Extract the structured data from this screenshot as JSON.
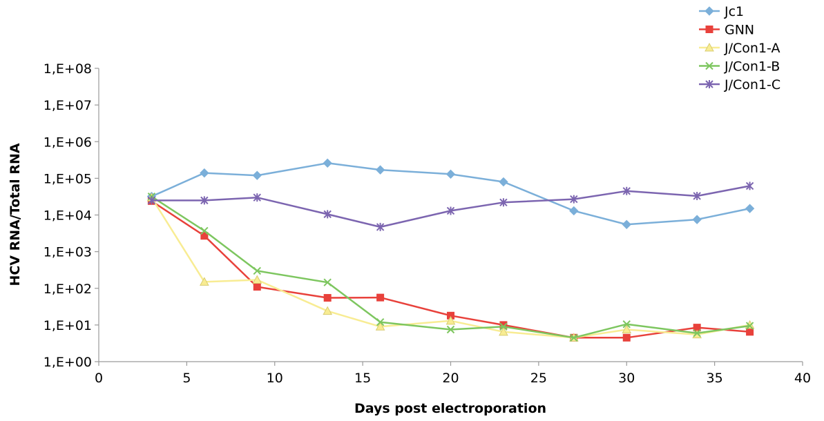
{
  "chart_data": {
    "type": "line",
    "title": "",
    "xlabel": "Days post electroporation",
    "ylabel": "HCV RNA/Total RNA",
    "xlim": [
      0,
      40
    ],
    "ylim": [
      1,
      100000000
    ],
    "y_scale": "log",
    "grid": false,
    "legend_position": "top-right",
    "x_ticks": [
      0,
      5,
      10,
      15,
      20,
      25,
      30,
      35,
      40
    ],
    "x_tick_labels": [
      "0",
      "5",
      "10",
      "15",
      "20",
      "25",
      "30",
      "35",
      "40"
    ],
    "y_ticks": [
      1,
      10,
      100,
      1000,
      10000,
      100000,
      1000000,
      10000000,
      100000000
    ],
    "y_tick_labels": [
      "1,E+00",
      "1,E+01",
      "1,E+02",
      "1,E+03",
      "1,E+04",
      "1,E+05",
      "1,E+06",
      "1,E+07",
      "1,E+08"
    ],
    "series": [
      {
        "name": "Jc1",
        "color": "#7BAFD9",
        "marker": "diamond",
        "x": [
          3,
          6,
          9,
          13,
          16,
          20,
          23,
          27,
          30,
          34,
          37
        ],
        "y": [
          32000,
          140000,
          120000,
          260000,
          170000,
          130000,
          80000,
          13000,
          5500,
          7500,
          15000
        ]
      },
      {
        "name": "GNN",
        "color": "#E8413B",
        "marker": "square",
        "x": [
          3,
          6,
          9,
          13,
          16,
          20,
          23,
          27,
          30,
          34,
          37
        ],
        "y": [
          24000,
          2700,
          110,
          55,
          56,
          18,
          10,
          4.5,
          4.5,
          8.5,
          6.5
        ]
      },
      {
        "name": "J/Con1-A",
        "color": "#F8EC93",
        "marker": "triangle",
        "x": [
          3,
          6,
          9,
          13,
          16,
          20,
          23,
          27,
          30,
          34,
          37
        ],
        "y": [
          30000,
          150,
          170,
          24,
          9,
          13,
          6.5,
          4.5,
          7.5,
          5.5,
          10
        ]
      },
      {
        "name": "J/Con1-B",
        "color": "#7DC65F",
        "marker": "x",
        "x": [
          3,
          6,
          9,
          13,
          16,
          20,
          23,
          27,
          30,
          34,
          37
        ],
        "y": [
          32000,
          3700,
          300,
          145,
          12,
          7.5,
          9,
          4.5,
          10.5,
          6,
          9.5
        ]
      },
      {
        "name": "J/Con1-C",
        "color": "#7C65B0",
        "marker": "star",
        "x": [
          3,
          6,
          9,
          13,
          16,
          20,
          23,
          27,
          30,
          34,
          37
        ],
        "y": [
          25000,
          25000,
          30000,
          10500,
          4700,
          13000,
          22000,
          27000,
          45000,
          33000,
          62000
        ]
      }
    ]
  }
}
